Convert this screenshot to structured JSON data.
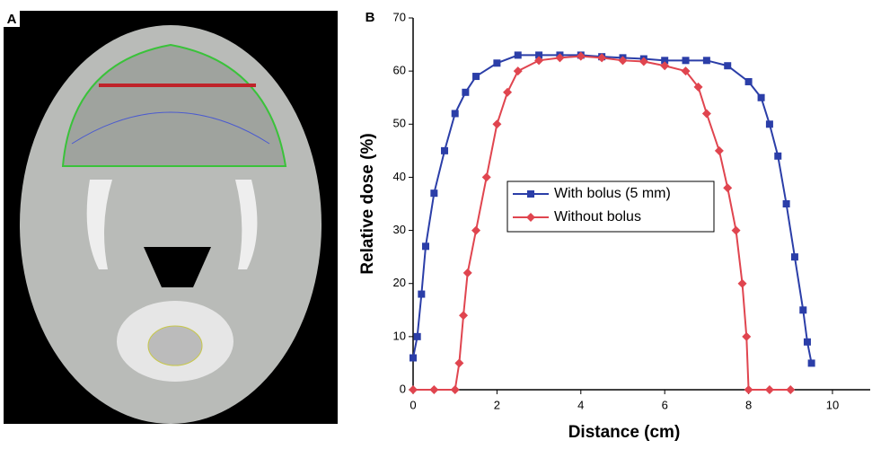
{
  "panel_labels": [
    "A",
    "B"
  ],
  "chart_data": {
    "type": "line",
    "xlabel": "Distance (cm)",
    "ylabel": "Relative dose (%)",
    "xlim": [
      0,
      10.9
    ],
    "xticks": [
      0,
      2,
      4,
      6,
      8,
      10
    ],
    "ylim": [
      0,
      70
    ],
    "yticks": [
      0,
      10,
      20,
      30,
      40,
      50,
      60,
      70
    ],
    "legend": "center",
    "series": [
      {
        "name": "With bolus (5 mm)",
        "color": "#2b3ea8",
        "marker": "square",
        "x": [
          0,
          0.1,
          0.2,
          0.3,
          0.5,
          0.75,
          1.0,
          1.25,
          1.5,
          2,
          2.5,
          3,
          3.5,
          4,
          4.5,
          5,
          5.5,
          6,
          6.5,
          7,
          7.5,
          8,
          8.3,
          8.5,
          8.7,
          8.9,
          9.1,
          9.3,
          9.4,
          9.5
        ],
        "values": [
          6,
          10,
          18,
          27,
          37,
          45,
          52,
          56,
          59,
          61.5,
          63,
          63,
          63,
          63,
          62.7,
          62.5,
          62.3,
          62,
          62,
          62,
          61,
          58,
          55,
          50,
          44,
          35,
          25,
          15,
          9,
          5
        ]
      },
      {
        "name": "Without bolus",
        "color": "#e0454f",
        "marker": "diamond",
        "x": [
          0,
          0.5,
          1.0,
          1.1,
          1.2,
          1.3,
          1.5,
          1.75,
          2,
          2.25,
          2.5,
          3,
          3.5,
          4,
          4.5,
          5,
          5.5,
          6,
          6.5,
          6.8,
          7,
          7.3,
          7.5,
          7.7,
          7.85,
          7.95,
          8.0,
          8.5,
          9.0
        ],
        "values": [
          0,
          0,
          0,
          5,
          14,
          22,
          30,
          40,
          50,
          56,
          60,
          62,
          62.5,
          62.8,
          62.5,
          62,
          61.8,
          61,
          60,
          57,
          52,
          45,
          38,
          30,
          20,
          10,
          0,
          0,
          0
        ]
      }
    ]
  }
}
